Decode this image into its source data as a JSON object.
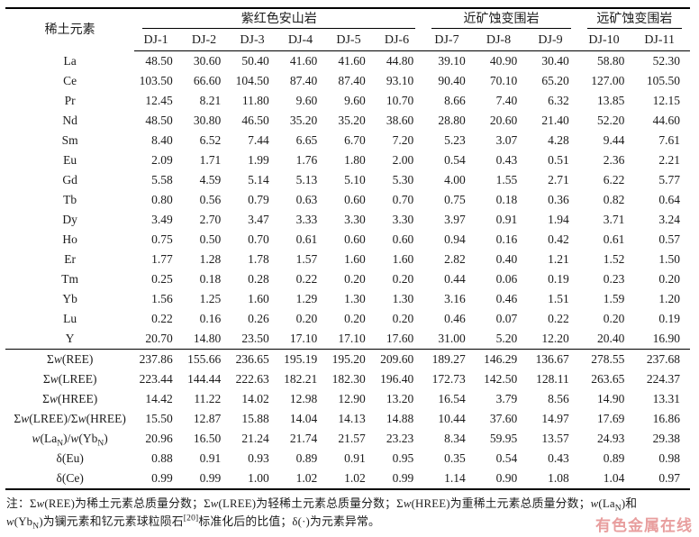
{
  "table": {
    "row_header_title": "稀土元素",
    "groups": [
      {
        "label": "紫红色安山岩",
        "columns": [
          "DJ-1",
          "DJ-2",
          "DJ-3",
          "DJ-4",
          "DJ-5",
          "DJ-6"
        ]
      },
      {
        "label": "近矿蚀变围岩",
        "columns": [
          "DJ-7",
          "DJ-8",
          "DJ-9"
        ]
      },
      {
        "label": "远矿蚀变围岩",
        "columns": [
          "DJ-10",
          "DJ-11"
        ]
      }
    ],
    "element_rows": [
      {
        "label": "La",
        "values": [
          "48.50",
          "30.60",
          "50.40",
          "41.60",
          "41.60",
          "44.80",
          "39.10",
          "40.90",
          "30.40",
          "58.80",
          "52.30"
        ]
      },
      {
        "label": "Ce",
        "values": [
          "103.50",
          "66.60",
          "104.50",
          "87.40",
          "87.40",
          "93.10",
          "90.40",
          "70.10",
          "65.20",
          "127.00",
          "105.50"
        ]
      },
      {
        "label": "Pr",
        "values": [
          "12.45",
          "8.21",
          "11.80",
          "9.60",
          "9.60",
          "10.70",
          "8.66",
          "7.40",
          "6.32",
          "13.85",
          "12.15"
        ]
      },
      {
        "label": "Nd",
        "values": [
          "48.50",
          "30.80",
          "46.50",
          "35.20",
          "35.20",
          "38.60",
          "28.80",
          "20.60",
          "21.40",
          "52.20",
          "44.60"
        ]
      },
      {
        "label": "Sm",
        "values": [
          "8.40",
          "6.52",
          "7.44",
          "6.65",
          "6.70",
          "7.20",
          "5.23",
          "3.07",
          "4.28",
          "9.44",
          "7.61"
        ]
      },
      {
        "label": "Eu",
        "values": [
          "2.09",
          "1.71",
          "1.99",
          "1.76",
          "1.80",
          "2.00",
          "0.54",
          "0.43",
          "0.51",
          "2.36",
          "2.21"
        ]
      },
      {
        "label": "Gd",
        "values": [
          "5.58",
          "4.59",
          "5.14",
          "5.13",
          "5.10",
          "5.30",
          "4.00",
          "1.55",
          "2.71",
          "6.22",
          "5.77"
        ]
      },
      {
        "label": "Tb",
        "values": [
          "0.80",
          "0.56",
          "0.79",
          "0.63",
          "0.60",
          "0.70",
          "0.75",
          "0.18",
          "0.36",
          "0.82",
          "0.64"
        ]
      },
      {
        "label": "Dy",
        "values": [
          "3.49",
          "2.70",
          "3.47",
          "3.33",
          "3.30",
          "3.30",
          "3.97",
          "0.91",
          "1.94",
          "3.71",
          "3.24"
        ]
      },
      {
        "label": "Ho",
        "values": [
          "0.75",
          "0.50",
          "0.70",
          "0.61",
          "0.60",
          "0.60",
          "0.94",
          "0.16",
          "0.42",
          "0.61",
          "0.57"
        ]
      },
      {
        "label": "Er",
        "values": [
          "1.77",
          "1.28",
          "1.78",
          "1.57",
          "1.60",
          "1.60",
          "2.82",
          "0.40",
          "1.21",
          "1.52",
          "1.50"
        ]
      },
      {
        "label": "Tm",
        "values": [
          "0.25",
          "0.18",
          "0.28",
          "0.22",
          "0.20",
          "0.20",
          "0.44",
          "0.06",
          "0.19",
          "0.23",
          "0.20"
        ]
      },
      {
        "label": "Yb",
        "values": [
          "1.56",
          "1.25",
          "1.60",
          "1.29",
          "1.30",
          "1.30",
          "3.16",
          "0.46",
          "1.51",
          "1.59",
          "1.20"
        ]
      },
      {
        "label": "Lu",
        "values": [
          "0.22",
          "0.16",
          "0.26",
          "0.20",
          "0.20",
          "0.20",
          "0.46",
          "0.07",
          "0.22",
          "0.20",
          "0.19"
        ]
      },
      {
        "label": "Y",
        "values": [
          "20.70",
          "14.80",
          "23.50",
          "17.10",
          "17.10",
          "17.60",
          "31.00",
          "5.20",
          "12.20",
          "20.40",
          "16.90"
        ]
      }
    ],
    "summary_rows": [
      {
        "label_segments": [
          {
            "t": "Σ"
          },
          {
            "t": "w",
            "s": "i"
          },
          {
            "t": "(REE)"
          }
        ],
        "values": [
          "237.86",
          "155.66",
          "236.65",
          "195.19",
          "195.20",
          "209.60",
          "189.27",
          "146.29",
          "136.67",
          "278.55",
          "237.68"
        ]
      },
      {
        "label_segments": [
          {
            "t": "Σ"
          },
          {
            "t": "w",
            "s": "i"
          },
          {
            "t": "(LREE)"
          }
        ],
        "values": [
          "223.44",
          "144.44",
          "222.63",
          "182.21",
          "182.30",
          "196.40",
          "172.73",
          "142.50",
          "128.11",
          "263.65",
          "224.37"
        ]
      },
      {
        "label_segments": [
          {
            "t": "Σ"
          },
          {
            "t": "w",
            "s": "i"
          },
          {
            "t": "(HREE)"
          }
        ],
        "values": [
          "14.42",
          "11.22",
          "14.02",
          "12.98",
          "12.90",
          "13.20",
          "16.54",
          "3.79",
          "8.56",
          "14.90",
          "13.31"
        ]
      },
      {
        "label_segments": [
          {
            "t": "Σ"
          },
          {
            "t": "w",
            "s": "i"
          },
          {
            "t": "(LREE)/Σ"
          },
          {
            "t": "w",
            "s": "i"
          },
          {
            "t": "(HREE)"
          }
        ],
        "values": [
          "15.50",
          "12.87",
          "15.88",
          "14.04",
          "14.13",
          "14.88",
          "10.44",
          "37.60",
          "14.97",
          "17.69",
          "16.86"
        ]
      },
      {
        "label_segments": [
          {
            "t": "w",
            "s": "i"
          },
          {
            "t": "(La"
          },
          {
            "t": "N",
            "s": "sub"
          },
          {
            "t": ")/"
          },
          {
            "t": "w",
            "s": "i"
          },
          {
            "t": "(Yb"
          },
          {
            "t": "N",
            "s": "sub"
          },
          {
            "t": ")"
          }
        ],
        "values": [
          "20.96",
          "16.50",
          "21.24",
          "21.74",
          "21.57",
          "23.23",
          "8.34",
          "59.95",
          "13.57",
          "24.93",
          "29.38"
        ]
      },
      {
        "label_segments": [
          {
            "t": "δ(Eu)"
          }
        ],
        "values": [
          "0.88",
          "0.91",
          "0.93",
          "0.89",
          "0.91",
          "0.95",
          "0.35",
          "0.54",
          "0.43",
          "0.89",
          "0.98"
        ]
      },
      {
        "label_segments": [
          {
            "t": "δ(Ce)"
          }
        ],
        "values": [
          "0.99",
          "0.99",
          "1.00",
          "1.02",
          "1.02",
          "0.99",
          "1.14",
          "0.90",
          "1.08",
          "1.04",
          "0.97"
        ]
      }
    ]
  },
  "footnote": {
    "lines": [
      [
        {
          "t": "注："
        },
        {
          "t": "Σ"
        },
        {
          "t": "w",
          "s": "i"
        },
        {
          "t": "(REE)为稀土元素总质量分数；"
        },
        {
          "t": "Σ"
        },
        {
          "t": "w",
          "s": "i"
        },
        {
          "t": "(LREE)为轻稀土元素总质量分数；"
        },
        {
          "t": "Σ"
        },
        {
          "t": "w",
          "s": "i"
        },
        {
          "t": "(HREE)为重稀土元素总质量分数；"
        },
        {
          "t": "w",
          "s": "i"
        },
        {
          "t": "(La"
        },
        {
          "t": "N",
          "s": "sub"
        },
        {
          "t": ")和"
        }
      ],
      [
        {
          "t": "w",
          "s": "i"
        },
        {
          "t": "(Yb"
        },
        {
          "t": "N",
          "s": "sub"
        },
        {
          "t": ")为镧元素和钇元素球粒陨石"
        },
        {
          "t": "[20]",
          "s": "sup"
        },
        {
          "t": "标准化后的比值；δ(·)为元素异常。"
        }
      ]
    ]
  },
  "watermark": {
    "text": "有色金属在线"
  },
  "colors": {
    "rule": "#000000",
    "text": "#1c1c1c",
    "watermark": "#e89e9e"
  }
}
